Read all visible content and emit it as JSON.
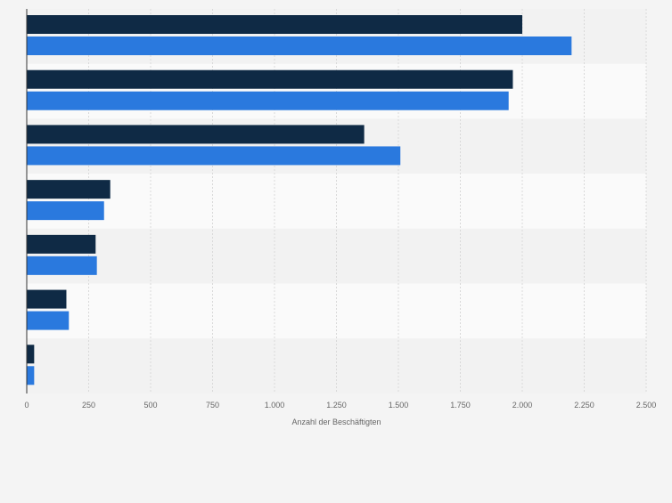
{
  "chart_data": {
    "type": "bar",
    "orientation": "horizontal",
    "categories": [
      "",
      "",
      "",
      "",
      "",
      "",
      ""
    ],
    "series": [
      {
        "values": [
          2000,
          1962,
          1362,
          337,
          278,
          160,
          30
        ]
      },
      {
        "values": [
          2199,
          1945,
          1508,
          312,
          283,
          170,
          30
        ]
      }
    ],
    "xlabel": "Anzahl der Beschäftigten",
    "ylabel": "",
    "xlim": [
      0,
      2500
    ],
    "ticks": [
      0,
      250,
      500,
      750,
      1000,
      1250,
      1500,
      1750,
      2000,
      2250,
      2500
    ],
    "tick_labels": [
      "0",
      "250",
      "500",
      "750",
      "1.000",
      "1.250",
      "1.500",
      "1.750",
      "2.000",
      "2.250",
      "2.500"
    ],
    "grid": true,
    "legend": "none",
    "colors": {
      "series": [
        "#0f2a45",
        "#2a79de"
      ],
      "band_light": "#fafafa",
      "band_dark": "#f2f2f2",
      "page": "#f4f4f4",
      "grid": "#d9d9d9",
      "axis": "#333333",
      "text": "#666666"
    }
  }
}
